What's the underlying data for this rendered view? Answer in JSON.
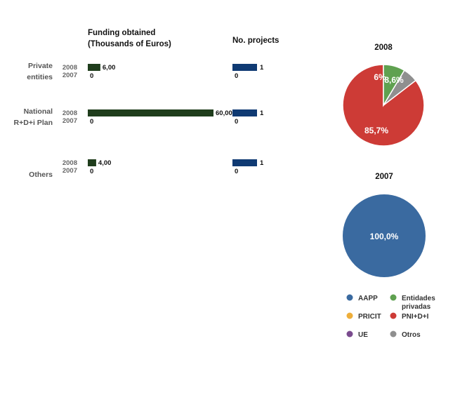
{
  "headers": {
    "funding": [
      "Funding obtained",
      "(Thousands of Euros)"
    ],
    "projects": "No. projects"
  },
  "colors": {
    "funding_bar": "#1f3d1c",
    "projects_bar": "#0f3a73",
    "AAPP": "#3a6aa0",
    "Entidades privadas": "#5fa150",
    "PRICIT": "#eeae3a",
    "PNI+D+I": "#cd3b36",
    "UE": "#7a4b8e",
    "Otros": "#8f8f8f"
  },
  "chart_data": [
    {
      "type": "bar",
      "orientation": "horizontal",
      "title": "Funding obtained (Thousands of Euros)",
      "categories": [
        [
          "Private",
          "entities"
        ],
        [
          "National",
          "R+D+i Plan"
        ],
        [
          "Others"
        ]
      ],
      "series": [
        {
          "name": "2008",
          "values": [
            6.0,
            60.0,
            4.0
          ],
          "labels": [
            "6,00",
            "60,00",
            "4,00"
          ]
        },
        {
          "name": "2007",
          "values": [
            0,
            0,
            0
          ],
          "labels": [
            "0",
            "0",
            "0"
          ]
        }
      ],
      "xlim": [
        0,
        60
      ]
    },
    {
      "type": "bar",
      "orientation": "horizontal",
      "title": "No. projects",
      "categories": [
        [
          "Private",
          "entities"
        ],
        [
          "National",
          "R+D+i Plan"
        ],
        [
          "Others"
        ]
      ],
      "series": [
        {
          "name": "2008",
          "values": [
            1,
            1,
            1
          ],
          "labels": [
            "1",
            "1",
            "1"
          ]
        },
        {
          "name": "2007",
          "values": [
            0,
            0,
            0
          ],
          "labels": [
            "0",
            "0",
            "0"
          ]
        }
      ],
      "xlim": [
        0,
        1
      ]
    },
    {
      "type": "pie",
      "title": "2008",
      "slices": [
        {
          "label": "PNI+D+I",
          "value": 85.7,
          "text": "85,7%"
        },
        {
          "label": "Otros",
          "value": 6.0,
          "text": "6%"
        },
        {
          "label": "Entidades privadas",
          "value": 8.6,
          "text": "8,6%"
        }
      ]
    },
    {
      "type": "pie",
      "title": "2007",
      "slices": [
        {
          "label": "AAPP",
          "value": 100.0,
          "text": "100,0%"
        }
      ]
    }
  ],
  "legend": [
    {
      "label": [
        "AAPP"
      ],
      "color_key": "AAPP"
    },
    {
      "label": [
        "Entidades",
        "privadas"
      ],
      "color_key": "Entidades privadas"
    },
    {
      "label": [
        "PRICIT"
      ],
      "color_key": "PRICIT"
    },
    {
      "label": [
        "PNI+D+I"
      ],
      "color_key": "PNI+D+I"
    },
    {
      "label": [
        "UE"
      ],
      "color_key": "UE"
    },
    {
      "label": [
        "Otros"
      ],
      "color_key": "Otros"
    }
  ]
}
